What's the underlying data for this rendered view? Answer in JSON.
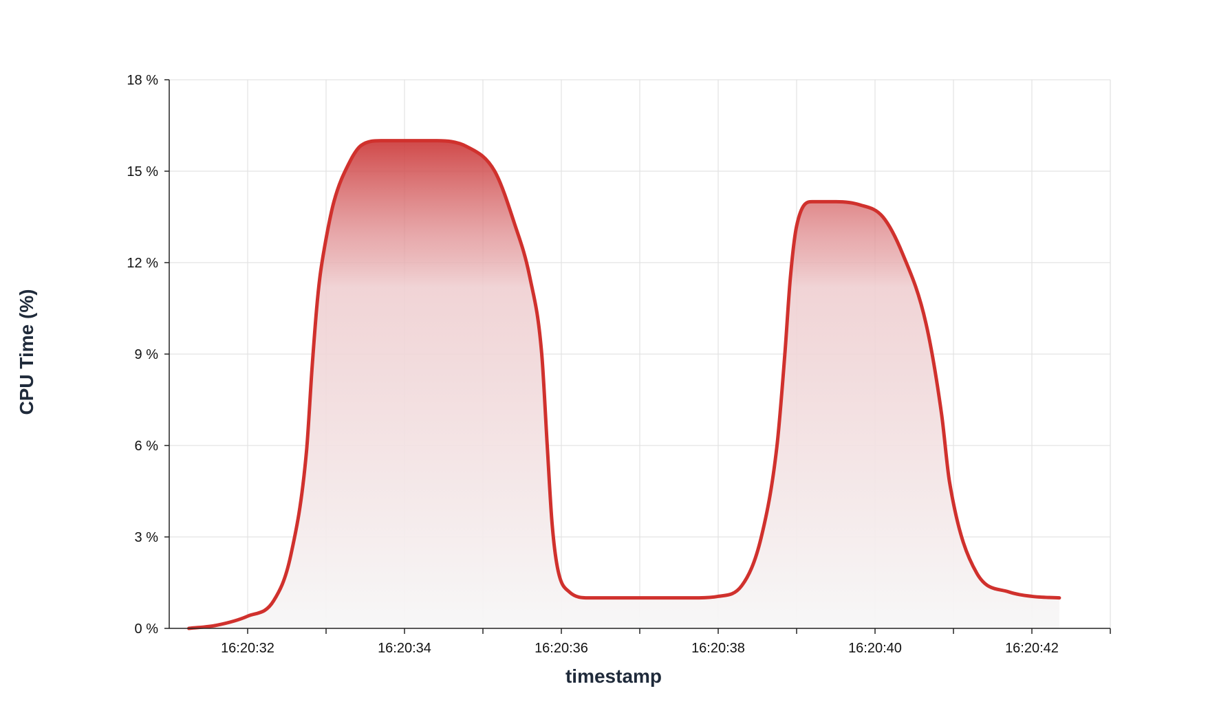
{
  "chart_data": {
    "type": "area",
    "title": "",
    "xlabel": "timestamp",
    "ylabel": "CPU Time (%)",
    "x_unit": "time (HH:MM:SS)",
    "xlim": [
      "16:20:31.00",
      "16:20:43.00"
    ],
    "ylim": [
      0,
      18
    ],
    "y_ticks": [
      0,
      3,
      6,
      9,
      12,
      15,
      18
    ],
    "y_tick_labels": [
      "0 %",
      "3 %",
      "6 %",
      "9 %",
      "12 %",
      "15 %",
      "18 %"
    ],
    "x_ticks": [
      "16:20:32",
      "16:20:34",
      "16:20:36",
      "16:20:38",
      "16:20:40",
      "16:20:42"
    ],
    "x_minor_ticks": [
      "16:20:33",
      "16:20:35",
      "16:20:37",
      "16:20:39",
      "16:20:41",
      "16:20:43"
    ],
    "grid": true,
    "line_color": "#d0312d",
    "fill_gradient": [
      "#cc3a3a",
      "#f7f7f7"
    ],
    "series": [
      {
        "x": [
          "16:20:31.25",
          "16:20:31.60",
          "16:20:32.00",
          "16:20:32.33",
          "16:20:32.55",
          "16:20:32.75",
          "16:20:32.82",
          "16:20:32.88",
          "16:20:32.92",
          "16:20:32.98",
          "16:20:33.10",
          "16:20:33.30",
          "16:20:33.45",
          "16:20:33.70",
          "16:20:34.00",
          "16:20:34.40",
          "16:20:34.80",
          "16:20:35.15",
          "16:20:35.40",
          "16:20:35.60",
          "16:20:35.75",
          "16:20:35.82",
          "16:20:35.88",
          "16:20:35.95",
          "16:20:36.10",
          "16:20:36.35",
          "16:20:37.00",
          "16:20:37.70",
          "16:20:38.00",
          "16:20:38.30",
          "16:20:38.55",
          "16:20:38.75",
          "16:20:38.85",
          "16:20:38.92",
          "16:20:39.00",
          "16:20:39.20",
          "16:20:39.50",
          "16:20:39.80",
          "16:20:40.10",
          "16:20:40.35",
          "16:20:40.65",
          "16:20:40.85",
          "16:20:40.95",
          "16:20:41.30",
          "16:20:41.70",
          "16:20:42.00",
          "16:20:42.35"
        ],
        "y": [
          0,
          0.1,
          0.4,
          0.9,
          2.4,
          5.8,
          8.5,
          10.5,
          11.5,
          12.5,
          14.0,
          15.3,
          15.85,
          16.0,
          16.0,
          16.0,
          15.8,
          15.0,
          13.3,
          11.5,
          9.0,
          6.0,
          3.5,
          2.0,
          1.2,
          1.0,
          1.0,
          1.0,
          1.05,
          1.4,
          3.0,
          6.0,
          9.0,
          11.5,
          13.2,
          14.0,
          14.0,
          13.9,
          13.5,
          12.3,
          10.0,
          7.0,
          4.8,
          1.8,
          1.2,
          1.05,
          1.0
        ]
      }
    ]
  }
}
